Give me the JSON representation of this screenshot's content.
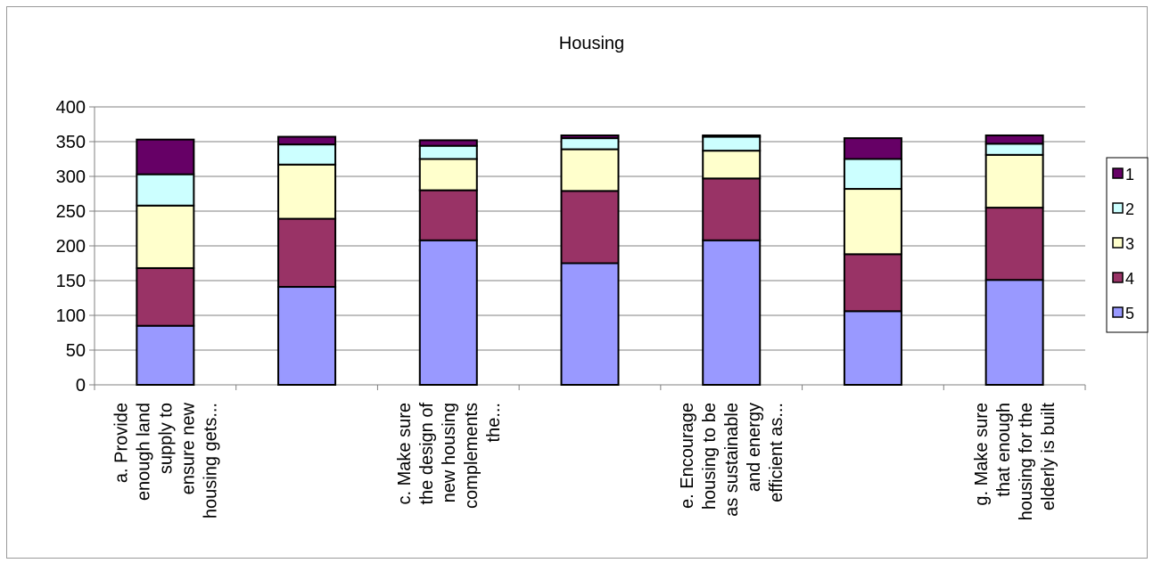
{
  "chart_data": {
    "type": "bar",
    "stacked": true,
    "title": "Housing",
    "xlabel": "",
    "ylabel": "",
    "ylim": [
      0,
      400
    ],
    "yticks": [
      0,
      50,
      100,
      150,
      200,
      250,
      300,
      350,
      400
    ],
    "grid": true,
    "legend_position": "right",
    "categories": [
      [
        "a. Provide",
        "enough land",
        "supply to",
        "ensure new",
        "housing gets..."
      ],
      [],
      [
        "c. Make sure",
        "the design of",
        "new housing",
        "complements",
        "the..."
      ],
      [],
      [
        "e. Encourage",
        "housing to be",
        "as sustainable",
        "and energy",
        "efficient as..."
      ],
      [],
      [
        "g. Make sure",
        "that enough",
        "housing for the",
        "elderly is built"
      ]
    ],
    "series": [
      {
        "name": "5",
        "color": "#9999ff",
        "values": [
          85,
          141,
          208,
          175,
          208,
          106,
          151
        ]
      },
      {
        "name": "4",
        "color": "#993366",
        "values": [
          83,
          98,
          72,
          104,
          89,
          82,
          104
        ]
      },
      {
        "name": "3",
        "color": "#ffffcc",
        "values": [
          90,
          78,
          45,
          60,
          40,
          94,
          76
        ]
      },
      {
        "name": "2",
        "color": "#ccffff",
        "values": [
          45,
          29,
          19,
          16,
          20,
          43,
          16
        ]
      },
      {
        "name": "1",
        "color": "#660066",
        "values": [
          50,
          11,
          8,
          4,
          2,
          30,
          12
        ]
      }
    ],
    "legend_order": [
      "1",
      "2",
      "3",
      "4",
      "5"
    ]
  }
}
